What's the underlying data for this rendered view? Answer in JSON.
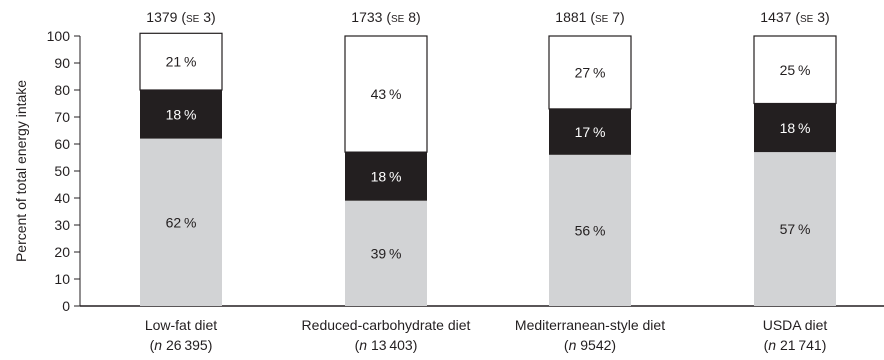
{
  "chart_data": {
    "type": "bar",
    "stacked": true,
    "ylabel": "Percent of total energy intake",
    "ylim": [
      0,
      100
    ],
    "yticks": [
      0,
      10,
      20,
      30,
      40,
      50,
      60,
      70,
      80,
      90,
      100
    ],
    "grid": false,
    "legend": "none",
    "categories": [
      {
        "line1": "Low-fat diet",
        "n_prefix": "n",
        "n_value": "26 395",
        "top": "1379",
        "se": "3"
      },
      {
        "line1": "Reduced-carbohydrate diet",
        "n_prefix": "n",
        "n_value": "13 403",
        "top": "1733",
        "se": "8"
      },
      {
        "line1": "Mediterranean-style diet",
        "n_prefix": "n",
        "n_value": "9542",
        "top": "1881",
        "se": "7"
      },
      {
        "line1": "USDA diet",
        "n_prefix": "n",
        "n_value": "21 741",
        "top": "1437",
        "se": "3"
      }
    ],
    "se_label": "se",
    "series": [
      {
        "values": [
          62,
          39,
          56,
          57
        ],
        "labels": [
          "62 %",
          "39 %",
          "56 %",
          "57 %"
        ],
        "color": "#d2d3d5",
        "text_color": "#231f20"
      },
      {
        "values": [
          18,
          18,
          17,
          18
        ],
        "labels": [
          "18 %",
          "18 %",
          "17 %",
          "18 %"
        ],
        "color": "#231f20",
        "text_color": "#ffffff"
      },
      {
        "values": [
          21,
          43,
          27,
          25
        ],
        "labels": [
          "21 %",
          "43 %",
          "27 %",
          "25 %"
        ],
        "color": "#ffffff",
        "text_color": "#231f20"
      }
    ]
  }
}
